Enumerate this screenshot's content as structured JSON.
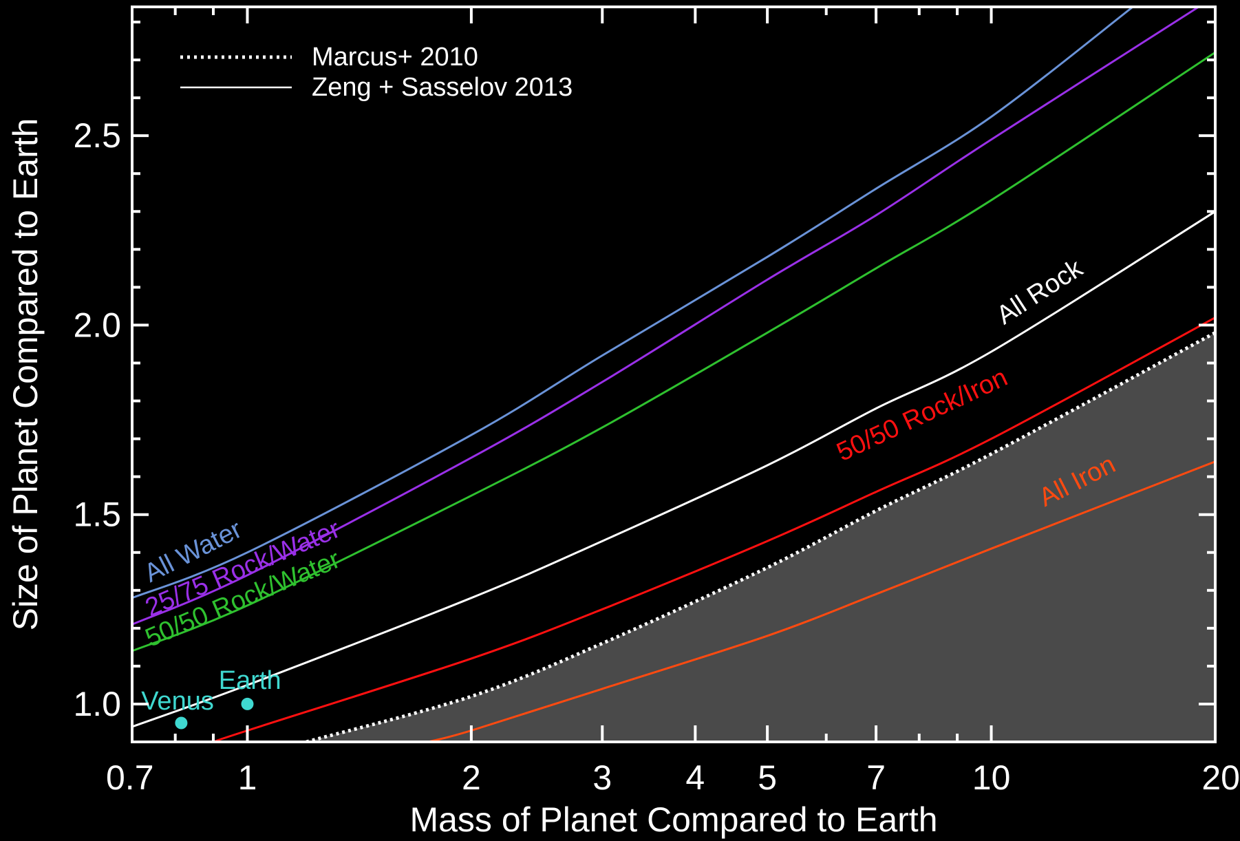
{
  "chart_data": {
    "type": "line",
    "xlabel": "Mass of Planet Compared to Earth",
    "ylabel": "Size of Planet Compared to Earth",
    "xscale": "log",
    "xlim": [
      0.7,
      20
    ],
    "ylim": [
      0.9,
      2.84
    ],
    "x_ticks": [
      {
        "value": 0.7,
        "label": "0.7"
      },
      {
        "value": 1,
        "label": "1"
      },
      {
        "value": 2,
        "label": "2"
      },
      {
        "value": 3,
        "label": "3"
      },
      {
        "value": 4,
        "label": "4"
      },
      {
        "value": 5,
        "label": "5"
      },
      {
        "value": 7,
        "label": "7"
      },
      {
        "value": 10,
        "label": "10"
      },
      {
        "value": 20,
        "label": "20"
      }
    ],
    "x_minor_ticks": [
      0.8,
      0.9,
      6,
      8,
      9
    ],
    "y_ticks": [
      {
        "value": 1.0,
        "label": "1.0"
      },
      {
        "value": 1.5,
        "label": "1.5"
      },
      {
        "value": 2.0,
        "label": "2.0"
      },
      {
        "value": 2.5,
        "label": "2.5"
      }
    ],
    "y_minor_step": 0.1,
    "grid": false,
    "legend": {
      "placement": "top-left",
      "entries": [
        {
          "label": "Marcus+ 2010",
          "style": "dotted",
          "color": "#ffffff"
        },
        {
          "label": "Zeng + Sasselov 2013",
          "style": "solid",
          "color": "#ffffff"
        }
      ]
    },
    "series": [
      {
        "name": "All Water",
        "color": "#6a93d8",
        "x": [
          0.7,
          1,
          2,
          3,
          5,
          7,
          10,
          15.5
        ],
        "y": [
          1.28,
          1.4,
          1.71,
          1.92,
          2.18,
          2.36,
          2.55,
          2.84
        ]
      },
      {
        "name": "25/75 Rock/Water",
        "color": "#9a30e8",
        "x": [
          0.7,
          1,
          2,
          3,
          5,
          7,
          10,
          19
        ],
        "y": [
          1.21,
          1.34,
          1.65,
          1.85,
          2.12,
          2.29,
          2.49,
          2.84
        ]
      },
      {
        "name": "50/50 Rock/Water",
        "color": "#2fc12f",
        "x": [
          0.7,
          1,
          2,
          3,
          5,
          7,
          10,
          20
        ],
        "y": [
          1.14,
          1.26,
          1.55,
          1.73,
          1.98,
          2.15,
          2.33,
          2.72
        ]
      },
      {
        "name": "All Rock",
        "color": "#ffffff",
        "x": [
          0.7,
          1,
          2,
          3,
          5,
          7,
          10,
          20
        ],
        "y": [
          0.94,
          1.05,
          1.28,
          1.43,
          1.63,
          1.78,
          1.93,
          2.3
        ]
      },
      {
        "name": "50/50 Rock/Iron",
        "color": "#ff1010",
        "x": [
          0.9,
          1,
          2,
          3,
          5,
          7,
          10,
          20
        ],
        "y": [
          0.9,
          0.93,
          1.12,
          1.25,
          1.43,
          1.56,
          1.7,
          2.02
        ]
      },
      {
        "name": "All Iron",
        "color": "#ff4a10",
        "x": [
          1.75,
          2,
          3,
          5,
          7,
          10,
          20
        ],
        "y": [
          0.9,
          0.93,
          1.04,
          1.18,
          1.29,
          1.41,
          1.64
        ]
      }
    ],
    "limit_curve": {
      "name": "Marcus+ 2010",
      "style": "dotted",
      "color": "#ffffff",
      "fill": "#4a4a4a",
      "x": [
        1.2,
        2,
        3,
        5,
        7,
        10,
        20
      ],
      "y": [
        0.9,
        1.02,
        1.16,
        1.36,
        1.51,
        1.66,
        1.98
      ]
    },
    "points": [
      {
        "name": "Venus",
        "x": 0.815,
        "y": 0.95,
        "color": "#3fd8d0"
      },
      {
        "name": "Earth",
        "x": 1.0,
        "y": 1.0,
        "color": "#3fd8d0"
      }
    ],
    "annotations": [
      {
        "text": "All Water",
        "color": "#6a93d8",
        "x": 0.74,
        "y": 1.32,
        "angle": -27
      },
      {
        "text": "25/75 Rock/Water",
        "color": "#9a30e8",
        "x": 0.74,
        "y": 1.23,
        "angle": -23
      },
      {
        "text": "50/50 Rock/Water",
        "color": "#2fc12f",
        "x": 0.74,
        "y": 1.15,
        "angle": -23
      },
      {
        "text": "All Rock",
        "color": "#ffffff",
        "x": 10.4,
        "y": 2.0,
        "angle": -33
      },
      {
        "text": "50/50 Rock/Iron",
        "color": "#ff1010",
        "x": 6.3,
        "y": 1.64,
        "angle": -25
      },
      {
        "text": "All Iron",
        "color": "#ff4a10",
        "x": 11.8,
        "y": 1.52,
        "angle": -27
      },
      {
        "text": "Venus",
        "color": "#3fd8d0",
        "x": 0.72,
        "y": 0.985,
        "angle": 0
      },
      {
        "text": "Earth",
        "color": "#3fd8d0",
        "x": 0.915,
        "y": 1.04,
        "angle": 0
      }
    ]
  }
}
